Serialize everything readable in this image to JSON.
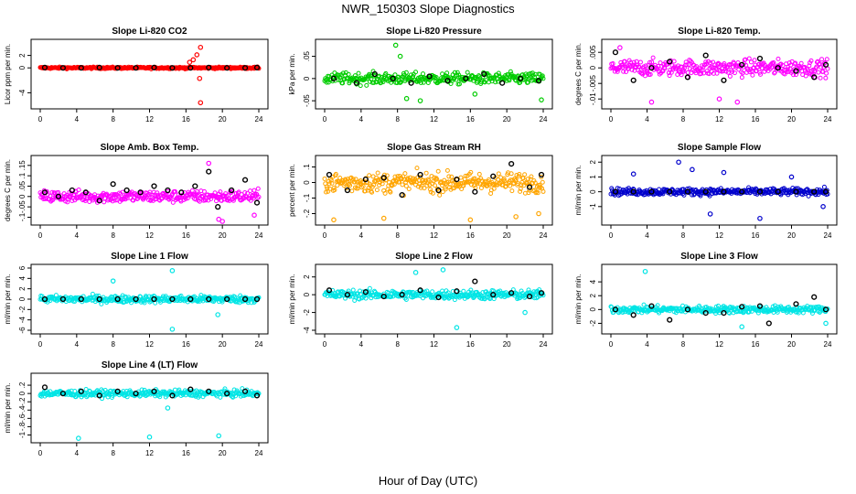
{
  "figure": {
    "title": "NWR_150303  Slope Diagnostics",
    "xlabel": "Hour of Day (UTC)"
  },
  "chart_data": [
    {
      "type": "scatter",
      "title": "Slope Li-820 CO2",
      "ylabel": "Licor ppm per min.",
      "color": "#ff0000",
      "xlim": [
        0,
        24
      ],
      "ylim": [
        -6,
        4
      ],
      "yticks": [
        -4,
        0,
        2
      ],
      "xticks": [
        0,
        4,
        8,
        12,
        16,
        20,
        24
      ],
      "spread": 0.25,
      "outliers": [
        {
          "x": 16.8,
          "y": 1.3
        },
        {
          "x": 17.2,
          "y": 2.1
        },
        {
          "x": 17.6,
          "y": 3.3
        },
        {
          "x": 17.5,
          "y": -1.7
        },
        {
          "x": 17.6,
          "y": -5.6
        },
        {
          "x": 16.4,
          "y": 0.9
        }
      ],
      "hourly_means": [
        {
          "x": 0.5,
          "y": 0.05
        },
        {
          "x": 2.5,
          "y": 0.0
        },
        {
          "x": 4.5,
          "y": 0.0
        },
        {
          "x": 6.5,
          "y": 0.05
        },
        {
          "x": 8.5,
          "y": 0.0
        },
        {
          "x": 10.5,
          "y": 0.0
        },
        {
          "x": 12.5,
          "y": 0.05
        },
        {
          "x": 14.5,
          "y": 0.0
        },
        {
          "x": 16.5,
          "y": 0.0
        },
        {
          "x": 18.5,
          "y": 0.05
        },
        {
          "x": 20.5,
          "y": 0.0
        },
        {
          "x": 22.5,
          "y": 0.0
        },
        {
          "x": 23.8,
          "y": 0.05
        }
      ]
    },
    {
      "type": "scatter",
      "title": "Slope Li-820 Pressure",
      "ylabel": "kPa per min.",
      "color": "#00cc00",
      "xlim": [
        0,
        24
      ],
      "ylim": [
        -0.06,
        0.08
      ],
      "yticks": [
        -0.05,
        0.0,
        0.05
      ],
      "xticks": [
        0,
        4,
        8,
        12,
        16,
        20,
        24
      ],
      "spread": 0.022,
      "outliers": [
        {
          "x": 7.8,
          "y": 0.075
        },
        {
          "x": 8.3,
          "y": 0.05
        },
        {
          "x": 9.0,
          "y": -0.045
        },
        {
          "x": 10.5,
          "y": -0.05
        },
        {
          "x": 16.5,
          "y": -0.035
        },
        {
          "x": 23.8,
          "y": -0.048
        }
      ],
      "hourly_means": [
        {
          "x": 1.0,
          "y": 0.0
        },
        {
          "x": 3.5,
          "y": -0.01
        },
        {
          "x": 5.5,
          "y": 0.01
        },
        {
          "x": 7.5,
          "y": 0.0
        },
        {
          "x": 9.5,
          "y": -0.01
        },
        {
          "x": 11.5,
          "y": 0.005
        },
        {
          "x": 13.5,
          "y": -0.005
        },
        {
          "x": 15.5,
          "y": 0.0
        },
        {
          "x": 17.5,
          "y": 0.01
        },
        {
          "x": 19.5,
          "y": -0.01
        },
        {
          "x": 21.5,
          "y": 0.0
        },
        {
          "x": 23.5,
          "y": -0.005
        }
      ]
    },
    {
      "type": "scatter",
      "title": "Slope Li-820 Temp.",
      "ylabel": "degrees C per min.",
      "color": "#ff00ff",
      "xlim": [
        0,
        24
      ],
      "ylim": [
        -0.012,
        0.008
      ],
      "yticks": [
        -0.01,
        -0.005,
        0.0,
        0.005
      ],
      "xticks": [
        0,
        4,
        8,
        12,
        16,
        20,
        24
      ],
      "spread": 0.0045,
      "outliers": [
        {
          "x": 4.5,
          "y": -0.011
        },
        {
          "x": 12.0,
          "y": -0.01
        },
        {
          "x": 14.0,
          "y": -0.011
        },
        {
          "x": 1.0,
          "y": 0.0065
        }
      ],
      "hourly_means": [
        {
          "x": 0.5,
          "y": 0.005
        },
        {
          "x": 2.5,
          "y": -0.004
        },
        {
          "x": 4.5,
          "y": 0.0
        },
        {
          "x": 6.5,
          "y": 0.002
        },
        {
          "x": 8.5,
          "y": -0.003
        },
        {
          "x": 10.5,
          "y": 0.004
        },
        {
          "x": 12.5,
          "y": -0.004
        },
        {
          "x": 14.5,
          "y": 0.001
        },
        {
          "x": 16.5,
          "y": 0.003
        },
        {
          "x": 18.5,
          "y": 0.0
        },
        {
          "x": 20.5,
          "y": -0.001
        },
        {
          "x": 22.5,
          "y": -0.003
        },
        {
          "x": 23.8,
          "y": 0.001
        }
      ]
    },
    {
      "type": "scatter",
      "title": "Slope Amb. Box Temp.",
      "ylabel": "degrees C per min.",
      "color": "#ff00ff",
      "xlim": [
        0,
        24
      ],
      "ylim": [
        -0.12,
        0.18
      ],
      "yticks": [
        -0.1,
        -0.05,
        0.0,
        0.05,
        0.1,
        0.15
      ],
      "xticks": [
        0,
        4,
        8,
        12,
        16,
        20,
        24
      ],
      "spread": 0.05,
      "outliers": [
        {
          "x": 18.5,
          "y": 0.16
        },
        {
          "x": 19.6,
          "y": -0.11
        },
        {
          "x": 20.0,
          "y": -0.12
        },
        {
          "x": 23.5,
          "y": -0.09
        }
      ],
      "hourly_means": [
        {
          "x": 0.5,
          "y": 0.02
        },
        {
          "x": 2.0,
          "y": 0.0
        },
        {
          "x": 3.5,
          "y": 0.03
        },
        {
          "x": 5.0,
          "y": 0.02
        },
        {
          "x": 6.5,
          "y": -0.02
        },
        {
          "x": 8.0,
          "y": 0.06
        },
        {
          "x": 9.5,
          "y": 0.03
        },
        {
          "x": 11.0,
          "y": 0.02
        },
        {
          "x": 12.5,
          "y": 0.05
        },
        {
          "x": 14.0,
          "y": 0.03
        },
        {
          "x": 15.5,
          "y": 0.02
        },
        {
          "x": 17.0,
          "y": 0.05
        },
        {
          "x": 18.5,
          "y": 0.12
        },
        {
          "x": 19.5,
          "y": -0.05
        },
        {
          "x": 21.0,
          "y": 0.03
        },
        {
          "x": 22.5,
          "y": 0.08
        },
        {
          "x": 23.8,
          "y": -0.03
        }
      ]
    },
    {
      "type": "scatter",
      "title": "Slope Gas Stream RH",
      "ylabel": "percent per min.",
      "color": "#ffa500",
      "xlim": [
        0,
        24
      ],
      "ylim": [
        -0.25,
        0.15
      ],
      "yticks": [
        -0.2,
        -0.1,
        0.0,
        0.1
      ],
      "xticks": [
        0,
        4,
        8,
        12,
        16,
        20,
        24
      ],
      "spread": 0.11,
      "outliers": [
        {
          "x": 1.0,
          "y": -0.24
        },
        {
          "x": 6.5,
          "y": -0.23
        },
        {
          "x": 16.0,
          "y": -0.24
        },
        {
          "x": 21.0,
          "y": -0.22
        },
        {
          "x": 23.5,
          "y": -0.2
        }
      ],
      "hourly_means": [
        {
          "x": 0.5,
          "y": 0.05
        },
        {
          "x": 2.5,
          "y": -0.05
        },
        {
          "x": 4.5,
          "y": 0.02
        },
        {
          "x": 6.5,
          "y": 0.03
        },
        {
          "x": 8.5,
          "y": -0.08
        },
        {
          "x": 10.5,
          "y": 0.05
        },
        {
          "x": 12.5,
          "y": -0.05
        },
        {
          "x": 14.5,
          "y": 0.02
        },
        {
          "x": 16.5,
          "y": -0.06
        },
        {
          "x": 18.5,
          "y": 0.04
        },
        {
          "x": 20.5,
          "y": 0.12
        },
        {
          "x": 22.5,
          "y": -0.03
        },
        {
          "x": 23.8,
          "y": 0.05
        }
      ]
    },
    {
      "type": "scatter",
      "title": "Slope Sample Flow",
      "ylabel": "ml/min per min.",
      "color": "#0000cc",
      "xlim": [
        0,
        24
      ],
      "ylim": [
        -2,
        2.2
      ],
      "yticks": [
        -1,
        0,
        1,
        2
      ],
      "xticks": [
        0,
        4,
        8,
        12,
        16,
        20,
        24
      ],
      "spread": 0.4,
      "outliers": [
        {
          "x": 7.5,
          "y": 2.0
        },
        {
          "x": 11.0,
          "y": -1.5
        },
        {
          "x": 16.5,
          "y": -1.8
        },
        {
          "x": 9.0,
          "y": 1.5
        },
        {
          "x": 2.5,
          "y": 1.2
        },
        {
          "x": 12.5,
          "y": 1.3
        },
        {
          "x": 20.0,
          "y": 1.0
        },
        {
          "x": 23.5,
          "y": -1.0
        }
      ],
      "hourly_means": [
        {
          "x": 0.5,
          "y": 0.0
        },
        {
          "x": 2.5,
          "y": 0.0
        },
        {
          "x": 4.5,
          "y": 0.0
        },
        {
          "x": 6.5,
          "y": 0.0
        },
        {
          "x": 8.5,
          "y": 0.0
        },
        {
          "x": 10.5,
          "y": 0.0
        },
        {
          "x": 12.5,
          "y": 0.0
        },
        {
          "x": 14.5,
          "y": 0.0
        },
        {
          "x": 16.5,
          "y": 0.0
        },
        {
          "x": 18.5,
          "y": 0.0
        },
        {
          "x": 20.5,
          "y": 0.0
        },
        {
          "x": 22.5,
          "y": 0.0
        },
        {
          "x": 23.8,
          "y": 0.0
        }
      ]
    },
    {
      "type": "scatter",
      "title": "Slope Line 1 Flow",
      "ylabel": "ml/min per min.",
      "color": "#00e5e5",
      "xlim": [
        0,
        24
      ],
      "ylim": [
        -6,
        6
      ],
      "yticks": [
        -6,
        -4,
        -2,
        0,
        2,
        4,
        6
      ],
      "xticks": [
        0,
        4,
        8,
        12,
        16,
        20,
        24
      ],
      "spread": 1.2,
      "outliers": [
        {
          "x": 14.5,
          "y": 5.5
        },
        {
          "x": 14.5,
          "y": -5.8
        },
        {
          "x": 19.5,
          "y": -3.0
        },
        {
          "x": 8.0,
          "y": 3.5
        }
      ],
      "hourly_means": [
        {
          "x": 0.5,
          "y": 0.0
        },
        {
          "x": 2.5,
          "y": 0.0
        },
        {
          "x": 4.5,
          "y": 0.0
        },
        {
          "x": 6.5,
          "y": 0.0
        },
        {
          "x": 8.5,
          "y": 0.0
        },
        {
          "x": 10.5,
          "y": 0.0
        },
        {
          "x": 12.5,
          "y": 0.0
        },
        {
          "x": 14.5,
          "y": 0.0
        },
        {
          "x": 16.5,
          "y": 0.0
        },
        {
          "x": 18.5,
          "y": 0.0
        },
        {
          "x": 20.5,
          "y": 0.0
        },
        {
          "x": 22.5,
          "y": 0.0
        },
        {
          "x": 23.8,
          "y": 0.0
        }
      ]
    },
    {
      "type": "scatter",
      "title": "Slope Line 2 Flow",
      "ylabel": "ml/min per min.",
      "color": "#00e5e5",
      "xlim": [
        0,
        24
      ],
      "ylim": [
        -4,
        3
      ],
      "yticks": [
        -4,
        -2,
        0,
        2
      ],
      "xticks": [
        0,
        4,
        8,
        12,
        16,
        20,
        24
      ],
      "spread": 0.9,
      "outliers": [
        {
          "x": 14.5,
          "y": -3.7
        },
        {
          "x": 10.0,
          "y": 2.5
        },
        {
          "x": 13.0,
          "y": 2.8
        },
        {
          "x": 22.0,
          "y": -2.0
        }
      ],
      "hourly_means": [
        {
          "x": 0.5,
          "y": 0.5
        },
        {
          "x": 2.5,
          "y": 0.0
        },
        {
          "x": 4.5,
          "y": 0.3
        },
        {
          "x": 6.5,
          "y": -0.2
        },
        {
          "x": 8.5,
          "y": 0.0
        },
        {
          "x": 10.5,
          "y": 0.5
        },
        {
          "x": 12.5,
          "y": -0.3
        },
        {
          "x": 14.5,
          "y": 0.4
        },
        {
          "x": 16.5,
          "y": 1.5
        },
        {
          "x": 18.5,
          "y": 0.0
        },
        {
          "x": 20.5,
          "y": 0.2
        },
        {
          "x": 22.5,
          "y": -0.2
        },
        {
          "x": 23.8,
          "y": 0.2
        }
      ]
    },
    {
      "type": "scatter",
      "title": "Slope Line 3 Flow",
      "ylabel": "ml/min per min.",
      "color": "#00e5e5",
      "xlim": [
        0,
        24
      ],
      "ylim": [
        -3,
        6
      ],
      "yticks": [
        -2,
        0,
        2,
        4
      ],
      "xticks": [
        0,
        4,
        8,
        12,
        16,
        20,
        24
      ],
      "spread": 0.9,
      "outliers": [
        {
          "x": 3.8,
          "y": 5.5
        },
        {
          "x": 14.5,
          "y": -2.5
        },
        {
          "x": 23.8,
          "y": -2.0
        }
      ],
      "hourly_means": [
        {
          "x": 0.5,
          "y": 0.0
        },
        {
          "x": 2.5,
          "y": -0.8
        },
        {
          "x": 4.5,
          "y": 0.5
        },
        {
          "x": 6.5,
          "y": -1.5
        },
        {
          "x": 8.5,
          "y": 0.0
        },
        {
          "x": 10.5,
          "y": -0.5
        },
        {
          "x": 12.5,
          "y": -0.5
        },
        {
          "x": 14.5,
          "y": 0.4
        },
        {
          "x": 16.5,
          "y": 0.5
        },
        {
          "x": 17.5,
          "y": -2.0
        },
        {
          "x": 20.5,
          "y": 0.8
        },
        {
          "x": 22.5,
          "y": 1.8
        },
        {
          "x": 23.8,
          "y": 0.0
        }
      ]
    },
    {
      "type": "scatter",
      "title": "Slope Line 4 (LT) Flow",
      "ylabel": "ml/min per min.",
      "color": "#00e5e5",
      "xlim": [
        0,
        24
      ],
      "ylim": [
        -1.1,
        0.4
      ],
      "yticks": [
        -1.0,
        -0.8,
        -0.6,
        -0.4,
        -0.2,
        0.0,
        0.2
      ],
      "xticks": [
        0,
        4,
        8,
        12,
        16,
        20,
        24
      ],
      "spread": 0.14,
      "outliers": [
        {
          "x": 4.2,
          "y": -1.08
        },
        {
          "x": 12.0,
          "y": -1.05
        },
        {
          "x": 19.6,
          "y": -1.02
        },
        {
          "x": 14.0,
          "y": -0.35
        }
      ],
      "hourly_means": [
        {
          "x": 0.5,
          "y": 0.15
        },
        {
          "x": 2.5,
          "y": 0.0
        },
        {
          "x": 4.5,
          "y": 0.05
        },
        {
          "x": 6.5,
          "y": -0.05
        },
        {
          "x": 8.5,
          "y": 0.05
        },
        {
          "x": 10.5,
          "y": 0.0
        },
        {
          "x": 12.5,
          "y": 0.05
        },
        {
          "x": 14.5,
          "y": -0.05
        },
        {
          "x": 16.5,
          "y": 0.1
        },
        {
          "x": 18.5,
          "y": 0.05
        },
        {
          "x": 20.5,
          "y": 0.0
        },
        {
          "x": 22.5,
          "y": 0.05
        },
        {
          "x": 23.8,
          "y": -0.05
        }
      ]
    }
  ]
}
